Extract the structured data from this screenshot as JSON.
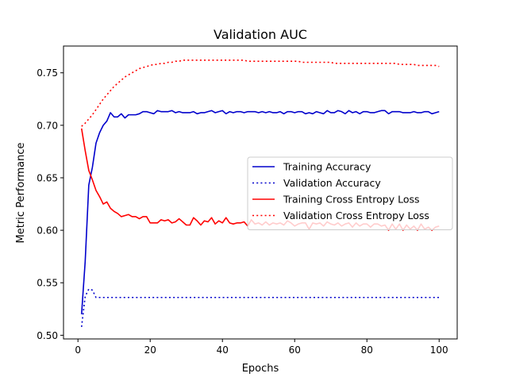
{
  "chart_data": {
    "type": "line",
    "title": "Validation AUC",
    "xlabel": "Epochs",
    "ylabel": "Metric Performance",
    "xlim": [
      -4,
      105
    ],
    "ylim": [
      0.4965,
      0.7755
    ],
    "xticks": [
      0,
      20,
      40,
      60,
      80,
      100
    ],
    "xtick_labels": [
      "0",
      "20",
      "40",
      "60",
      "80",
      "100"
    ],
    "yticks": [
      0.5,
      0.55,
      0.6,
      0.65,
      0.7,
      0.75
    ],
    "ytick_labels": [
      "0.50",
      "0.55",
      "0.60",
      "0.65",
      "0.70",
      "0.75"
    ],
    "grid": false,
    "legend_position": "center-right",
    "series": [
      {
        "name": "Training Accuracy",
        "color": "#0000cc",
        "style": "solid",
        "x": [
          1,
          2,
          3,
          4,
          5,
          6,
          7,
          8,
          9,
          10,
          11,
          12,
          13,
          14,
          15,
          16,
          17,
          18,
          19,
          20,
          21,
          22,
          23,
          24,
          25,
          26,
          27,
          28,
          29,
          30,
          31,
          32,
          33,
          34,
          35,
          36,
          37,
          38,
          39,
          40,
          41,
          42,
          43,
          44,
          45,
          46,
          47,
          48,
          49,
          50,
          51,
          52,
          53,
          54,
          55,
          56,
          57,
          58,
          59,
          60,
          61,
          62,
          63,
          64,
          65,
          66,
          67,
          68,
          69,
          70,
          71,
          72,
          73,
          74,
          75,
          76,
          77,
          78,
          79,
          80,
          81,
          82,
          83,
          84,
          85,
          86,
          87,
          88,
          89,
          90,
          91,
          92,
          93,
          94,
          95,
          96,
          97,
          98,
          99,
          100
        ],
        "y": [
          0.52,
          0.57,
          0.643,
          0.66,
          0.683,
          0.693,
          0.7,
          0.704,
          0.712,
          0.708,
          0.708,
          0.711,
          0.707,
          0.71,
          0.71,
          0.71,
          0.711,
          0.713,
          0.713,
          0.712,
          0.711,
          0.714,
          0.713,
          0.713,
          0.713,
          0.714,
          0.712,
          0.713,
          0.712,
          0.712,
          0.712,
          0.713,
          0.711,
          0.712,
          0.712,
          0.713,
          0.714,
          0.712,
          0.713,
          0.714,
          0.711,
          0.713,
          0.712,
          0.713,
          0.713,
          0.712,
          0.713,
          0.713,
          0.713,
          0.712,
          0.713,
          0.712,
          0.713,
          0.712,
          0.712,
          0.713,
          0.711,
          0.713,
          0.713,
          0.712,
          0.713,
          0.713,
          0.711,
          0.712,
          0.711,
          0.713,
          0.712,
          0.711,
          0.714,
          0.712,
          0.712,
          0.714,
          0.713,
          0.711,
          0.714,
          0.712,
          0.713,
          0.711,
          0.713,
          0.713,
          0.712,
          0.712,
          0.713,
          0.714,
          0.714,
          0.711,
          0.713,
          0.713,
          0.713,
          0.712,
          0.712,
          0.712,
          0.713,
          0.712,
          0.712,
          0.713,
          0.713,
          0.711,
          0.712,
          0.713
        ]
      },
      {
        "name": "Validation Accuracy",
        "color": "#0000cc",
        "style": "dotted",
        "x": [
          1,
          2,
          3,
          4,
          5,
          6,
          7,
          8,
          9,
          10,
          11,
          12,
          13,
          14,
          15,
          16,
          17,
          18,
          19,
          20,
          21,
          22,
          23,
          24,
          25,
          26,
          27,
          28,
          29,
          30,
          31,
          32,
          33,
          34,
          35,
          36,
          37,
          38,
          39,
          40,
          41,
          42,
          43,
          44,
          45,
          46,
          47,
          48,
          49,
          50,
          51,
          52,
          53,
          54,
          55,
          56,
          57,
          58,
          59,
          60,
          61,
          62,
          63,
          64,
          65,
          66,
          67,
          68,
          69,
          70,
          71,
          72,
          73,
          74,
          75,
          76,
          77,
          78,
          79,
          80,
          81,
          82,
          83,
          84,
          85,
          86,
          87,
          88,
          89,
          90,
          91,
          92,
          93,
          94,
          95,
          96,
          97,
          98,
          99,
          100
        ],
        "y": [
          0.508,
          0.537,
          0.544,
          0.543,
          0.536,
          0.536,
          0.536,
          0.536,
          0.536,
          0.536,
          0.536,
          0.536,
          0.536,
          0.536,
          0.536,
          0.536,
          0.536,
          0.536,
          0.536,
          0.536,
          0.536,
          0.536,
          0.536,
          0.536,
          0.536,
          0.536,
          0.536,
          0.536,
          0.536,
          0.536,
          0.536,
          0.536,
          0.536,
          0.536,
          0.536,
          0.536,
          0.536,
          0.536,
          0.536,
          0.536,
          0.536,
          0.536,
          0.536,
          0.536,
          0.536,
          0.536,
          0.536,
          0.536,
          0.536,
          0.536,
          0.536,
          0.536,
          0.536,
          0.536,
          0.536,
          0.536,
          0.536,
          0.536,
          0.536,
          0.536,
          0.536,
          0.536,
          0.536,
          0.536,
          0.536,
          0.536,
          0.536,
          0.536,
          0.536,
          0.536,
          0.536,
          0.536,
          0.536,
          0.536,
          0.536,
          0.536,
          0.536,
          0.536,
          0.536,
          0.536,
          0.536,
          0.536,
          0.536,
          0.536,
          0.536,
          0.536,
          0.536,
          0.536,
          0.536,
          0.536,
          0.536,
          0.536,
          0.536,
          0.536,
          0.536,
          0.536,
          0.536,
          0.536,
          0.536,
          0.536
        ]
      },
      {
        "name": "Training Cross Entropy Loss",
        "color": "#ff0000",
        "style": "solid",
        "x": [
          1,
          2,
          3,
          4,
          5,
          6,
          7,
          8,
          9,
          10,
          11,
          12,
          13,
          14,
          15,
          16,
          17,
          18,
          19,
          20,
          21,
          22,
          23,
          24,
          25,
          26,
          27,
          28,
          29,
          30,
          31,
          32,
          33,
          34,
          35,
          36,
          37,
          38,
          39,
          40,
          41,
          42,
          43,
          44,
          45,
          46,
          47,
          48,
          49,
          50,
          51,
          52,
          53,
          54,
          55,
          56,
          57,
          58,
          59,
          60,
          61,
          62,
          63,
          64,
          65,
          66,
          67,
          68,
          69,
          70,
          71,
          72,
          73,
          74,
          75,
          76,
          77,
          78,
          79,
          80,
          81,
          82,
          83,
          84,
          85,
          86,
          87,
          88,
          89,
          90,
          91,
          92,
          93,
          94,
          95,
          96,
          97,
          98,
          99,
          100
        ],
        "y": [
          0.697,
          0.676,
          0.657,
          0.648,
          0.638,
          0.632,
          0.625,
          0.627,
          0.621,
          0.618,
          0.616,
          0.613,
          0.614,
          0.615,
          0.613,
          0.613,
          0.611,
          0.613,
          0.613,
          0.607,
          0.607,
          0.607,
          0.61,
          0.609,
          0.61,
          0.607,
          0.608,
          0.611,
          0.608,
          0.605,
          0.605,
          0.612,
          0.609,
          0.605,
          0.609,
          0.608,
          0.612,
          0.606,
          0.609,
          0.607,
          0.612,
          0.607,
          0.606,
          0.607,
          0.607,
          0.608,
          0.604,
          0.61,
          0.606,
          0.607,
          0.605,
          0.608,
          0.605,
          0.607,
          0.606,
          0.607,
          0.605,
          0.609,
          0.607,
          0.604,
          0.606,
          0.607,
          0.607,
          0.601,
          0.607,
          0.606,
          0.607,
          0.604,
          0.608,
          0.606,
          0.605,
          0.607,
          0.604,
          0.606,
          0.607,
          0.603,
          0.607,
          0.604,
          0.606,
          0.606,
          0.603,
          0.606,
          0.606,
          0.604,
          0.605,
          0.6,
          0.606,
          0.601,
          0.606,
          0.6,
          0.605,
          0.601,
          0.604,
          0.6,
          0.606,
          0.601,
          0.603,
          0.6,
          0.603,
          0.604
        ]
      },
      {
        "name": "Validation Cross Entropy Loss",
        "color": "#ff0000",
        "style": "dotted",
        "x": [
          1,
          2,
          3,
          4,
          5,
          6,
          7,
          8,
          9,
          10,
          11,
          12,
          13,
          14,
          15,
          16,
          17,
          18,
          19,
          20,
          21,
          22,
          23,
          24,
          25,
          26,
          27,
          28,
          29,
          30,
          31,
          32,
          33,
          34,
          35,
          36,
          37,
          38,
          39,
          40,
          41,
          42,
          43,
          44,
          45,
          46,
          47,
          48,
          49,
          50,
          51,
          52,
          53,
          54,
          55,
          56,
          57,
          58,
          59,
          60,
          61,
          62,
          63,
          64,
          65,
          66,
          67,
          68,
          69,
          70,
          71,
          72,
          73,
          74,
          75,
          76,
          77,
          78,
          79,
          80,
          81,
          82,
          83,
          84,
          85,
          86,
          87,
          88,
          89,
          90,
          91,
          92,
          93,
          94,
          95,
          96,
          97,
          98,
          99,
          100
        ],
        "y": [
          0.699,
          0.702,
          0.706,
          0.71,
          0.715,
          0.72,
          0.725,
          0.729,
          0.733,
          0.737,
          0.74,
          0.743,
          0.746,
          0.748,
          0.75,
          0.752,
          0.754,
          0.755,
          0.756,
          0.757,
          0.758,
          0.758,
          0.759,
          0.759,
          0.76,
          0.76,
          0.761,
          0.761,
          0.762,
          0.762,
          0.762,
          0.762,
          0.762,
          0.762,
          0.762,
          0.762,
          0.762,
          0.762,
          0.762,
          0.762,
          0.762,
          0.762,
          0.762,
          0.762,
          0.762,
          0.762,
          0.761,
          0.761,
          0.761,
          0.761,
          0.761,
          0.761,
          0.761,
          0.761,
          0.761,
          0.761,
          0.761,
          0.761,
          0.761,
          0.761,
          0.761,
          0.76,
          0.76,
          0.76,
          0.76,
          0.76,
          0.76,
          0.76,
          0.76,
          0.76,
          0.759,
          0.759,
          0.759,
          0.759,
          0.759,
          0.759,
          0.759,
          0.759,
          0.759,
          0.759,
          0.759,
          0.759,
          0.759,
          0.759,
          0.759,
          0.759,
          0.759,
          0.759,
          0.758,
          0.758,
          0.758,
          0.758,
          0.758,
          0.757,
          0.757,
          0.757,
          0.757,
          0.757,
          0.757,
          0.756
        ]
      }
    ]
  }
}
